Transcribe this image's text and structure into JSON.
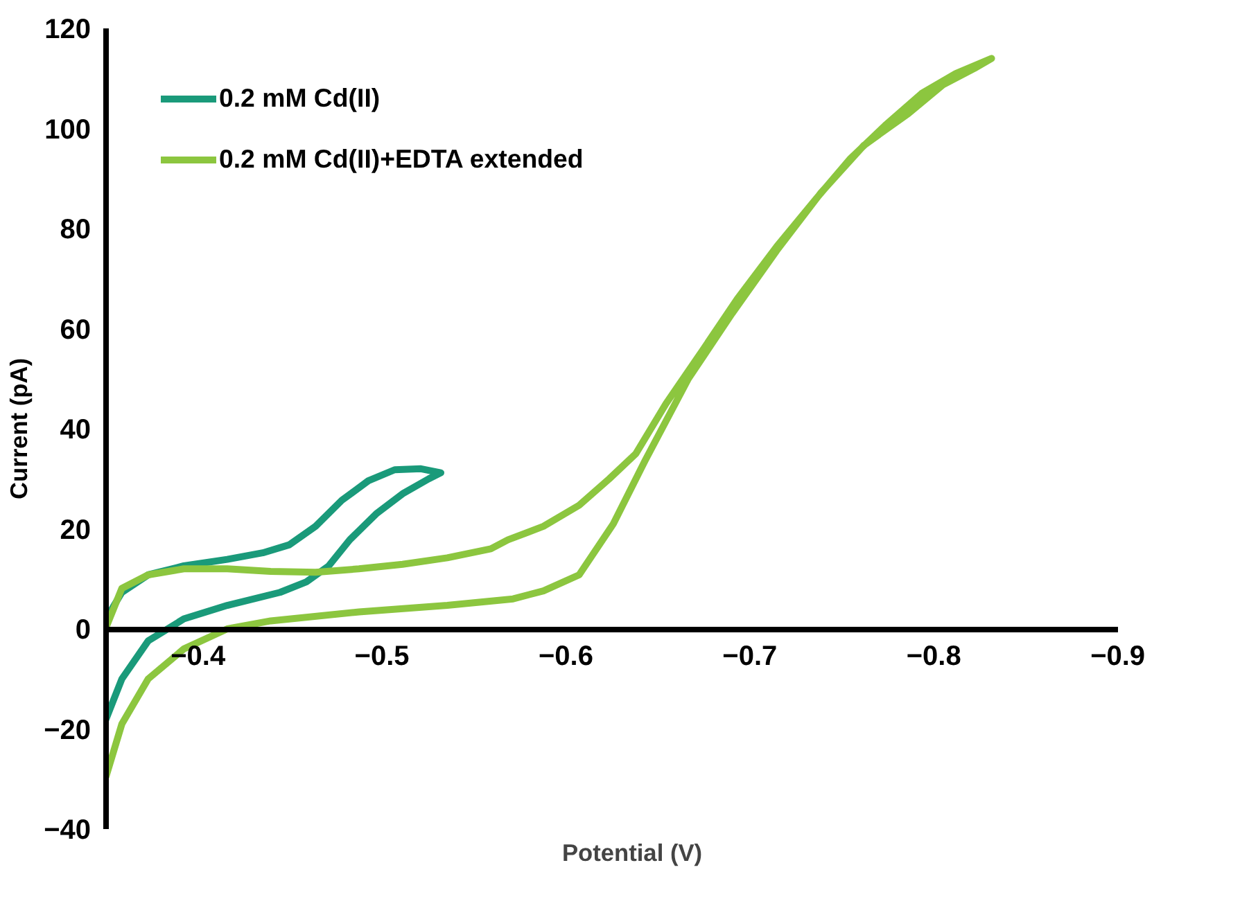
{
  "chart_data": {
    "type": "line",
    "xlabel": "Potential (V)",
    "ylabel": "Current (pA)",
    "xlim": [
      -0.35,
      -0.9
    ],
    "xticks": [
      -0.4,
      -0.5,
      -0.6,
      -0.7,
      -0.8,
      -0.9
    ],
    "ylim": [
      -40,
      120
    ],
    "yticks": [
      -40,
      -20,
      0,
      20,
      40,
      60,
      80,
      100,
      120
    ],
    "grid": false,
    "legend": "top left",
    "marker": "none",
    "line_style": "solid",
    "series": [
      {
        "name": "0.2 mM Cd(II)",
        "color": "#1a9a7a",
        "x": [
          -0.35,
          -0.3586,
          -0.3729,
          -0.3923,
          -0.4159,
          -0.4446,
          -0.4589,
          -0.4711,
          -0.4825,
          -0.4969,
          -0.5112,
          -0.5255,
          -0.532,
          -0.5212,
          -0.5069,
          -0.4926,
          -0.4782,
          -0.4639,
          -0.4496,
          -0.4352,
          -0.4159,
          -0.3923,
          -0.3729,
          -0.3586,
          -0.35
        ],
        "values": [
          -18,
          -10,
          -2.4,
          2,
          4.7,
          7.3,
          9.4,
          12.6,
          17.8,
          23,
          27,
          30,
          31.2,
          32,
          31.8,
          29.6,
          25.7,
          20.5,
          16.8,
          15.2,
          13.9,
          12.6,
          10.8,
          7.3,
          2
        ]
      },
      {
        "name": "0.2 mM Cd(II)+EDTA extended",
        "color": "#8cc63f",
        "x": [
          -0.35,
          -0.3586,
          -0.3729,
          -0.3923,
          -0.4159,
          -0.4395,
          -0.4875,
          -0.5355,
          -0.5713,
          -0.5878,
          -0.6072,
          -0.6258,
          -0.643,
          -0.6666,
          -0.6903,
          -0.7146,
          -0.7383,
          -0.7619,
          -0.7862,
          -0.8049,
          -0.822,
          -0.8314,
          -0.812,
          -0.7934,
          -0.7741,
          -0.7547,
          -0.7361,
          -0.7146,
          -0.6931,
          -0.6738,
          -0.6544,
          -0.638,
          -0.6236,
          -0.6072,
          -0.5878,
          -0.5685,
          -0.5592,
          -0.5355,
          -0.5112,
          -0.4875,
          -0.4639,
          -0.4395,
          -0.4159,
          -0.3923,
          -0.3729,
          -0.3586,
          -0.35
        ],
        "values": [
          -29.5,
          -19,
          -10,
          -4,
          0,
          1.6,
          3.4,
          4.7,
          6,
          7.6,
          10.8,
          21,
          33.6,
          50,
          63,
          75.6,
          87,
          96.6,
          103,
          108.7,
          112,
          114,
          111,
          107,
          100.8,
          94,
          86,
          76.4,
          65.9,
          55.4,
          45,
          35,
          30,
          24.7,
          20.5,
          17.8,
          16,
          14.2,
          12.9,
          12,
          11.3,
          11.5,
          12,
          12,
          10.8,
          8.1,
          0.3
        ]
      }
    ]
  }
}
